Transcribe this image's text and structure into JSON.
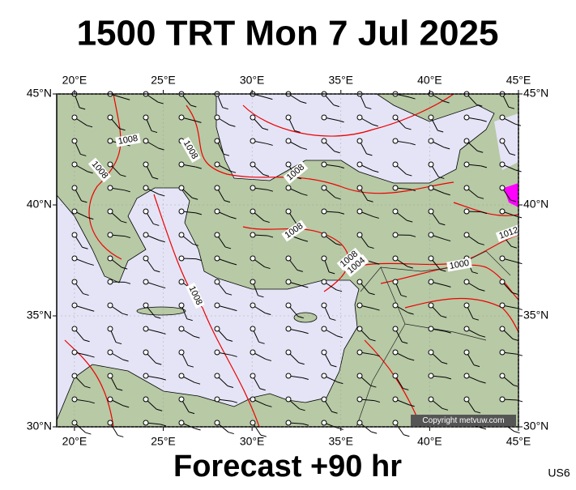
{
  "header": {
    "title": "1500 TRT Mon 7 Jul 2025"
  },
  "map": {
    "lon_range": [
      19,
      45
    ],
    "lat_range": [
      30,
      45
    ],
    "lon_ticks": [
      {
        "value": 20,
        "label": "20°E"
      },
      {
        "value": 25,
        "label": "25°E"
      },
      {
        "value": 30,
        "label": "30°E"
      },
      {
        "value": 35,
        "label": "35°E"
      },
      {
        "value": 40,
        "label": "40°E"
      },
      {
        "value": 45,
        "label": "45°E"
      }
    ],
    "lat_ticks": [
      {
        "value": 30,
        "label": "30°N"
      },
      {
        "value": 35,
        "label": "35°N"
      },
      {
        "value": 40,
        "label": "40°N"
      },
      {
        "value": 45,
        "label": "45°N"
      }
    ],
    "contour_labels": [
      "1008",
      "1008",
      "1008",
      "1008",
      "1008",
      "1008",
      "1008",
      "1004",
      "1000",
      "1012"
    ],
    "copyright": "Copyright metvuw.com"
  },
  "footer": {
    "forecast": "Forecast +90 hr",
    "code": "US6"
  }
}
